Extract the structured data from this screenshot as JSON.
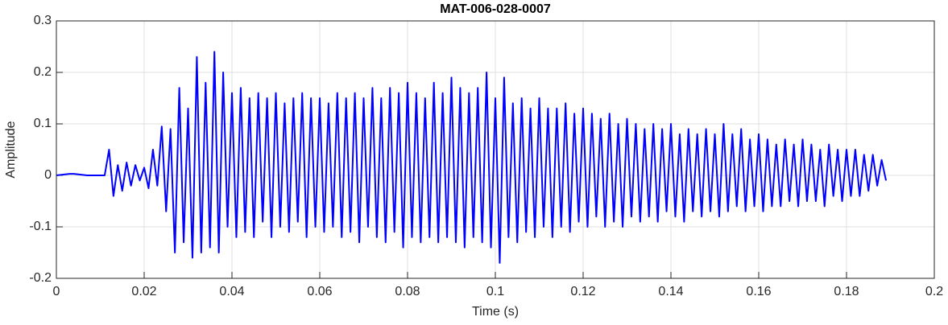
{
  "chart_data": {
    "type": "line",
    "title": "MAT-006-028-0007",
    "x_label": "Time (s)",
    "y_label": "Amplitude",
    "grid": true,
    "color": "#0000ff",
    "xlim": [
      0,
      0.2
    ],
    "xticks": [
      0,
      0.02,
      0.04,
      0.06,
      0.08,
      0.1,
      0.12,
      0.14,
      0.16,
      0.18,
      0.2
    ],
    "ylim": [
      -0.2,
      0.3
    ],
    "yticks": [
      -0.2,
      -0.1,
      0,
      0.1,
      0.2,
      0.3
    ],
    "x": [
      0,
      0.001,
      0.002,
      0.003,
      0.004,
      0.005,
      0.006,
      0.007,
      0.008,
      0.009,
      0.01,
      0.011,
      0.012,
      0.013,
      0.014,
      0.015,
      0.016,
      0.017,
      0.018,
      0.019,
      0.02,
      0.021,
      0.022,
      0.023,
      0.024,
      0.025,
      0.026,
      0.027,
      0.028,
      0.029,
      0.03,
      0.031,
      0.032,
      0.033,
      0.034,
      0.035,
      0.036,
      0.037,
      0.038,
      0.039,
      0.04,
      0.041,
      0.042,
      0.043,
      0.044,
      0.045,
      0.046,
      0.047,
      0.048,
      0.049,
      0.05,
      0.051,
      0.052,
      0.053,
      0.054,
      0.055,
      0.056,
      0.057,
      0.058,
      0.059,
      0.06,
      0.061,
      0.062,
      0.063,
      0.064,
      0.065,
      0.066,
      0.067,
      0.068,
      0.069,
      0.07,
      0.071,
      0.072,
      0.073,
      0.074,
      0.075,
      0.076,
      0.077,
      0.078,
      0.079,
      0.08,
      0.081,
      0.082,
      0.083,
      0.084,
      0.085,
      0.086,
      0.087,
      0.088,
      0.089,
      0.09,
      0.091,
      0.092,
      0.093,
      0.094,
      0.095,
      0.096,
      0.097,
      0.098,
      0.099,
      0.1,
      0.101,
      0.102,
      0.103,
      0.104,
      0.105,
      0.106,
      0.107,
      0.108,
      0.109,
      0.11,
      0.111,
      0.112,
      0.113,
      0.114,
      0.115,
      0.116,
      0.117,
      0.118,
      0.119,
      0.12,
      0.121,
      0.122,
      0.123,
      0.124,
      0.125,
      0.126,
      0.127,
      0.128,
      0.129,
      0.13,
      0.131,
      0.132,
      0.133,
      0.134,
      0.135,
      0.136,
      0.137,
      0.138,
      0.139,
      0.14,
      0.141,
      0.142,
      0.143,
      0.144,
      0.145,
      0.146,
      0.147,
      0.148,
      0.149,
      0.15,
      0.151,
      0.152,
      0.153,
      0.154,
      0.155,
      0.156,
      0.157,
      0.158,
      0.159,
      0.16,
      0.161,
      0.162,
      0.163,
      0.164,
      0.165,
      0.166,
      0.167,
      0.168,
      0.169,
      0.17,
      0.171,
      0.172,
      0.173,
      0.174,
      0.175,
      0.176,
      0.177,
      0.178,
      0.179,
      0.18,
      0.181,
      0.182,
      0.183,
      0.184,
      0.185,
      0.186,
      0.187,
      0.188,
      0.189
    ],
    "values": [
      0,
      0.001,
      0.002,
      0.003,
      0.003,
      0.002,
      0.001,
      0,
      0,
      0,
      0,
      0,
      0.05,
      -0.04,
      0.02,
      -0.03,
      0.025,
      -0.02,
      0.02,
      -0.01,
      0.015,
      -0.025,
      0.05,
      -0.02,
      0.095,
      -0.07,
      0.09,
      -0.15,
      0.17,
      -0.13,
      0.13,
      -0.16,
      0.23,
      -0.15,
      0.18,
      -0.14,
      0.24,
      -0.15,
      0.2,
      -0.1,
      0.16,
      -0.12,
      0.17,
      -0.11,
      0.15,
      -0.12,
      0.16,
      -0.09,
      0.15,
      -0.12,
      0.16,
      -0.1,
      0.14,
      -0.11,
      0.15,
      -0.09,
      0.16,
      -0.12,
      0.15,
      -0.1,
      0.15,
      -0.11,
      0.14,
      -0.1,
      0.16,
      -0.12,
      0.15,
      -0.11,
      0.16,
      -0.13,
      0.15,
      -0.1,
      0.17,
      -0.12,
      0.15,
      -0.13,
      0.17,
      -0.11,
      0.16,
      -0.14,
      0.18,
      -0.12,
      0.16,
      -0.13,
      0.15,
      -0.12,
      0.18,
      -0.13,
      0.16,
      -0.12,
      0.19,
      -0.13,
      0.17,
      -0.14,
      0.16,
      -0.12,
      0.17,
      -0.13,
      0.2,
      -0.14,
      0.15,
      -0.17,
      0.19,
      -0.12,
      0.14,
      -0.13,
      0.15,
      -0.11,
      0.13,
      -0.12,
      0.15,
      -0.1,
      0.13,
      -0.12,
      0.13,
      -0.1,
      0.14,
      -0.11,
      0.12,
      -0.09,
      0.13,
      -0.1,
      0.12,
      -0.08,
      0.11,
      -0.1,
      0.12,
      -0.09,
      0.1,
      -0.1,
      0.11,
      -0.08,
      0.1,
      -0.09,
      0.09,
      -0.08,
      0.1,
      -0.09,
      0.09,
      -0.07,
      0.1,
      -0.08,
      0.08,
      -0.09,
      0.09,
      -0.07,
      0.08,
      -0.08,
      0.09,
      -0.07,
      0.08,
      -0.08,
      0.1,
      -0.07,
      0.08,
      -0.06,
      0.09,
      -0.07,
      0.07,
      -0.06,
      0.08,
      -0.07,
      0.07,
      -0.06,
      0.06,
      -0.06,
      0.07,
      -0.05,
      0.06,
      -0.06,
      0.07,
      -0.05,
      0.06,
      -0.05,
      0.05,
      -0.06,
      0.06,
      -0.04,
      0.05,
      -0.05,
      0.05,
      -0.04,
      0.05,
      -0.04,
      0.04,
      -0.03,
      0.04,
      -0.02,
      0.03,
      -0.01
    ]
  }
}
